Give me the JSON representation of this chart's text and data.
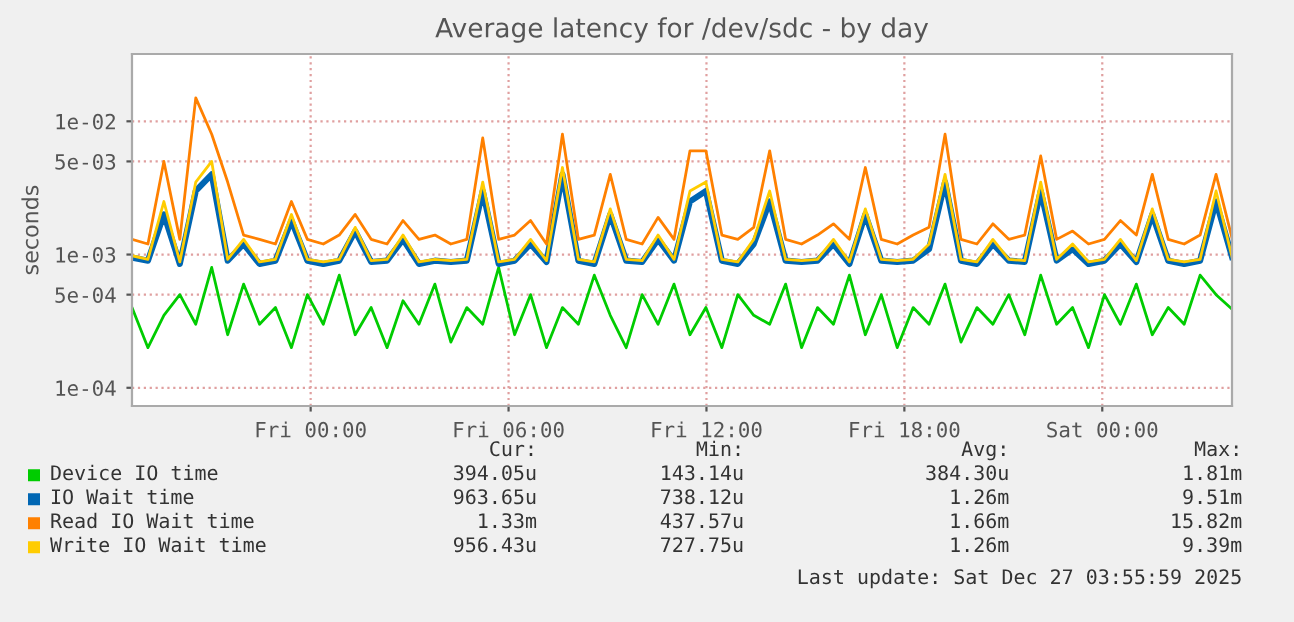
{
  "chart_data": {
    "type": "line",
    "title": "Average latency for /dev/sdc - by day",
    "ylabel": "seconds",
    "log": "y",
    "x": [
      "2025-12-25T18:35",
      "2025-12-25T19:04",
      "2025-12-25T19:33",
      "2025-12-25T20:02",
      "2025-12-25T20:31",
      "2025-12-25T21:00",
      "2025-12-25T21:29",
      "2025-12-25T21:58",
      "2025-12-25T22:27",
      "2025-12-25T22:56",
      "2025-12-25T23:25",
      "2025-12-25T23:54",
      "2025-12-26T00:23",
      "2025-12-26T00:52",
      "2025-12-26T01:21",
      "2025-12-26T01:50",
      "2025-12-26T02:19",
      "2025-12-26T02:48",
      "2025-12-26T03:17",
      "2025-12-26T03:46",
      "2025-12-26T04:15",
      "2025-12-26T04:44",
      "2025-12-26T05:13",
      "2025-12-26T05:42",
      "2025-12-26T06:11",
      "2025-12-26T06:40",
      "2025-12-26T07:09",
      "2025-12-26T07:38",
      "2025-12-26T08:07",
      "2025-12-26T08:36",
      "2025-12-26T09:05",
      "2025-12-26T09:34",
      "2025-12-26T10:03",
      "2025-12-26T10:32",
      "2025-12-26T11:01",
      "2025-12-26T11:30",
      "2025-12-26T11:59",
      "2025-12-26T12:28",
      "2025-12-26T12:57",
      "2025-12-26T13:26",
      "2025-12-26T13:55",
      "2025-12-26T14:24",
      "2025-12-26T14:53",
      "2025-12-26T15:22",
      "2025-12-26T15:51",
      "2025-12-26T16:20",
      "2025-12-26T16:49",
      "2025-12-26T17:18",
      "2025-12-26T17:47",
      "2025-12-26T18:16",
      "2025-12-26T18:45",
      "2025-12-26T19:14",
      "2025-12-26T19:43",
      "2025-12-26T20:12",
      "2025-12-26T20:41",
      "2025-12-26T21:10",
      "2025-12-26T21:39",
      "2025-12-26T22:08",
      "2025-12-26T22:37",
      "2025-12-26T23:06",
      "2025-12-26T23:35",
      "2025-12-27T00:04",
      "2025-12-27T00:33",
      "2025-12-27T01:02",
      "2025-12-27T01:31",
      "2025-12-27T02:00",
      "2025-12-27T02:29",
      "2025-12-27T02:58",
      "2025-12-27T03:27",
      "2025-12-27T03:56"
    ],
    "xlim": [
      "2025-12-25T18:35",
      "2025-12-27T03:56"
    ],
    "xticks": [
      {
        "value": "2025-12-26T00:00",
        "label": "Fri 00:00"
      },
      {
        "value": "2025-12-26T06:00",
        "label": "Fri 06:00"
      },
      {
        "value": "2025-12-26T12:00",
        "label": "Fri 12:00"
      },
      {
        "value": "2025-12-26T18:00",
        "label": "Fri 18:00"
      },
      {
        "value": "2025-12-27T00:00",
        "label": "Sat 00:00"
      }
    ],
    "ylim": [
      7.3e-05,
      0.032
    ],
    "yticks": [
      {
        "value": 0.0001,
        "label": "1e-04"
      },
      {
        "value": 0.0005,
        "label": "5e-04"
      },
      {
        "value": 0.001,
        "label": "1e-03"
      },
      {
        "value": 0.005,
        "label": "5e-03"
      },
      {
        "value": 0.01,
        "label": "1e-02"
      }
    ],
    "grid": true,
    "legend": "bottom",
    "line_style": "solid",
    "marker": "none",
    "series": [
      {
        "name": "Device IO time",
        "color": "#00cc00",
        "values": [
          0.0004,
          0.0002,
          0.00035,
          0.0005,
          0.0003,
          0.0008,
          0.00025,
          0.0006,
          0.0003,
          0.0004,
          0.0002,
          0.0005,
          0.0003,
          0.0007,
          0.00025,
          0.0004,
          0.0002,
          0.00045,
          0.0003,
          0.0006,
          0.00022,
          0.0004,
          0.0003,
          0.0008,
          0.00025,
          0.0005,
          0.0002,
          0.0004,
          0.0003,
          0.0007,
          0.00035,
          0.0002,
          0.0005,
          0.0003,
          0.0006,
          0.00025,
          0.0004,
          0.0002,
          0.0005,
          0.00035,
          0.0003,
          0.0006,
          0.0002,
          0.0004,
          0.0003,
          0.0007,
          0.00025,
          0.0005,
          0.0002,
          0.0004,
          0.0003,
          0.0006,
          0.00022,
          0.0004,
          0.0003,
          0.0005,
          0.00025,
          0.0007,
          0.0003,
          0.0004,
          0.0002,
          0.0005,
          0.0003,
          0.0006,
          0.00025,
          0.0004,
          0.0003,
          0.0007,
          0.0005,
          0.00039
        ]
      },
      {
        "name": "IO Wait time",
        "color": "#0066b3",
        "values": [
          0.00095,
          0.0009,
          0.002,
          0.00085,
          0.003,
          0.004,
          0.0009,
          0.0012,
          0.00085,
          0.0009,
          0.0018,
          0.0009,
          0.00085,
          0.0009,
          0.0015,
          0.00088,
          0.0009,
          0.0013,
          0.00085,
          0.0009,
          0.00088,
          0.0009,
          0.003,
          0.00085,
          0.0009,
          0.0012,
          0.00088,
          0.004,
          0.0009,
          0.00085,
          0.002,
          0.0009,
          0.00088,
          0.0013,
          0.0009,
          0.0025,
          0.003,
          0.0009,
          0.00085,
          0.0012,
          0.0025,
          0.0009,
          0.00088,
          0.0009,
          0.0012,
          0.00085,
          0.002,
          0.0009,
          0.00088,
          0.0009,
          0.0011,
          0.0035,
          0.0009,
          0.00085,
          0.0012,
          0.0009,
          0.00088,
          0.003,
          0.0009,
          0.0011,
          0.00085,
          0.0009,
          0.0012,
          0.00088,
          0.002,
          0.0009,
          0.00085,
          0.0009,
          0.0025,
          0.00096
        ]
      },
      {
        "name": "Read IO Wait time",
        "color": "#ff8000",
        "values": [
          0.0013,
          0.0012,
          0.005,
          0.0013,
          0.015,
          0.008,
          0.0035,
          0.0014,
          0.0013,
          0.0012,
          0.0025,
          0.0013,
          0.0012,
          0.0014,
          0.002,
          0.0013,
          0.0012,
          0.0018,
          0.0013,
          0.0014,
          0.0012,
          0.0013,
          0.0075,
          0.0013,
          0.0014,
          0.0018,
          0.0012,
          0.008,
          0.0013,
          0.0014,
          0.004,
          0.0013,
          0.0012,
          0.0019,
          0.0013,
          0.006,
          0.006,
          0.0014,
          0.0013,
          0.0016,
          0.006,
          0.0013,
          0.0012,
          0.0014,
          0.0017,
          0.0013,
          0.0045,
          0.0013,
          0.0012,
          0.0014,
          0.0016,
          0.008,
          0.0013,
          0.0012,
          0.0017,
          0.0013,
          0.0014,
          0.0055,
          0.0013,
          0.0015,
          0.0012,
          0.0013,
          0.0018,
          0.0014,
          0.004,
          0.0013,
          0.0012,
          0.0014,
          0.004,
          0.00133
        ]
      },
      {
        "name": "Write IO Wait time",
        "color": "#ffcc00",
        "values": [
          0.00098,
          0.00092,
          0.0025,
          0.00088,
          0.0035,
          0.005,
          0.00092,
          0.0013,
          0.00088,
          0.00092,
          0.002,
          0.00092,
          0.00088,
          0.00092,
          0.0016,
          0.0009,
          0.00092,
          0.0014,
          0.00088,
          0.00092,
          0.0009,
          0.00092,
          0.0035,
          0.00088,
          0.00092,
          0.0013,
          0.0009,
          0.0045,
          0.00092,
          0.00088,
          0.0022,
          0.00092,
          0.0009,
          0.0014,
          0.00092,
          0.003,
          0.0035,
          0.00092,
          0.00088,
          0.0013,
          0.003,
          0.00092,
          0.0009,
          0.00092,
          0.0013,
          0.00088,
          0.0022,
          0.00092,
          0.0009,
          0.00092,
          0.0012,
          0.004,
          0.00092,
          0.00088,
          0.0013,
          0.00092,
          0.0009,
          0.0035,
          0.00092,
          0.0012,
          0.00088,
          0.00092,
          0.0013,
          0.0009,
          0.0022,
          0.00092,
          0.00088,
          0.00092,
          0.003,
          0.00096
        ]
      }
    ],
    "annotations": [
      "Cur:",
      "Min:",
      "Avg:",
      "Max:",
      "394.05u",
      "143.14u",
      "384.30u",
      "1.81m",
      "963.65u",
      "738.12u",
      "1.26m",
      "9.51m",
      "1.33m",
      "437.57u",
      "1.66m",
      "15.82m",
      "956.43u",
      "727.75u",
      "1.26m",
      "9.39m",
      "Last update: Sat Dec 27 03:55:59 2025"
    ]
  }
}
